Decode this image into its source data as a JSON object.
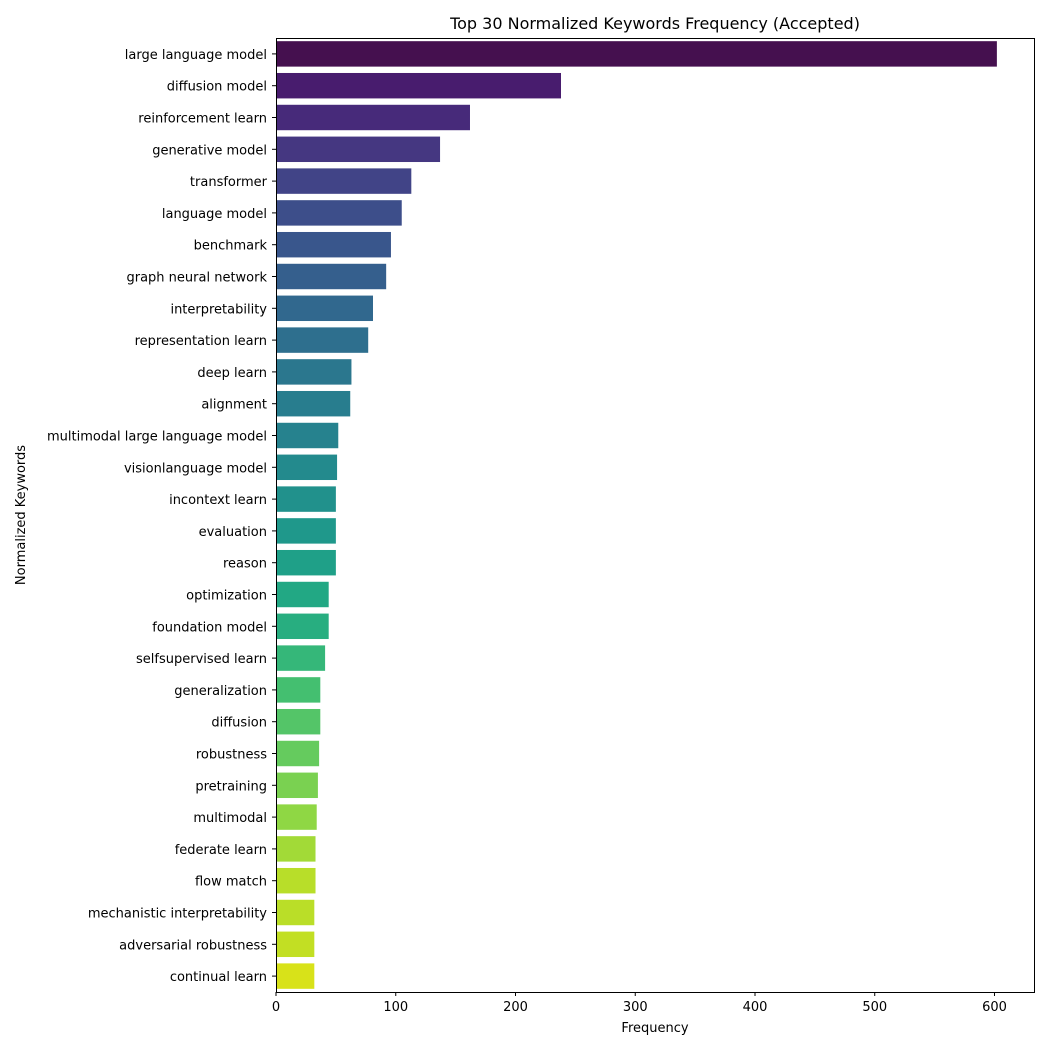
{
  "chart_data": {
    "type": "bar",
    "orientation": "horizontal",
    "title": "Top 30 Normalized Keywords Frequency (Accepted)",
    "xlabel": "Frequency",
    "ylabel": "Normalized Keywords",
    "xlim": [
      0,
      633
    ],
    "xticks": [
      0,
      100,
      200,
      300,
      400,
      500,
      600
    ],
    "grid": false,
    "colormap": "viridis",
    "categories": [
      "large language model",
      "diffusion model",
      "reinforcement learn",
      "generative model",
      "transformer",
      "language model",
      "benchmark",
      "graph neural network",
      "interpretability",
      "representation learn",
      "deep learn",
      "alignment",
      "multimodal large language model",
      "visionlanguage model",
      "incontext learn",
      "evaluation",
      "reason",
      "optimization",
      "foundation model",
      "selfsupervised learn",
      "generalization",
      "diffusion",
      "robustness",
      "pretraining",
      "multimodal",
      "federate learn",
      "flow match",
      "mechanistic interpretability",
      "adversarial robustness",
      "continual learn"
    ],
    "values": [
      602,
      238,
      162,
      137,
      113,
      105,
      96,
      92,
      81,
      77,
      63,
      62,
      52,
      51,
      50,
      50,
      50,
      44,
      44,
      41,
      37,
      37,
      36,
      35,
      34,
      33,
      33,
      32,
      32,
      32
    ],
    "colors": [
      "#45104f",
      "#481c6e",
      "#472a7a",
      "#453781",
      "#414487",
      "#3d4e8a",
      "#39568c",
      "#355f8d",
      "#31688e",
      "#2e6f8e",
      "#2b778e",
      "#287d8e",
      "#26828e",
      "#238a8d",
      "#21918c",
      "#1f988b",
      "#1fa088",
      "#22a884",
      "#28ae80",
      "#35b779",
      "#44bf70",
      "#54c568",
      "#65cb5e",
      "#7ad151",
      "#8fd744",
      "#a2da37",
      "#b8de29",
      "#bade28",
      "#c2df23",
      "#d8e219"
    ]
  }
}
